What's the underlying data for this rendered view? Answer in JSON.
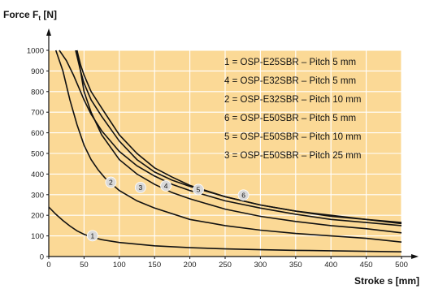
{
  "chart_data": {
    "type": "line",
    "ylabel_main": "Force F",
    "ylabel_sub": "t",
    "ylabel_unit": " [N]",
    "xlabel": "Stroke s [mm]",
    "xlim": [
      0,
      500
    ],
    "ylim": [
      0,
      1000
    ],
    "xticks": [
      0,
      50,
      100,
      150,
      200,
      250,
      300,
      350,
      400,
      450,
      500
    ],
    "yticks": [
      0,
      100,
      200,
      300,
      400,
      500,
      600,
      700,
      800,
      900,
      1000
    ],
    "grid": true,
    "background": "#fbd996",
    "line_color": "#111111",
    "legend_position": "top-right",
    "legend": [
      "1 = OSP-E25SBR – Pitch  5 mm",
      "4 = OSP-E32SBR – Pitch  5 mm",
      "2 = OSP-E32SBR – Pitch  10 mm",
      "6 = OSP-E50SBR – Pitch  5 mm",
      "5 = OSP-E50SBR – Pitch  10 mm",
      "3 = OSP-E50SBR – Pitch  25 mm"
    ],
    "series": [
      {
        "name": "1",
        "label_at": [
          62,
          101
        ],
        "x": [
          0,
          10,
          20,
          30,
          40,
          50,
          60,
          75,
          100,
          150,
          200,
          250,
          300,
          350,
          400,
          450,
          500
        ],
        "y": [
          240,
          205,
          175,
          148,
          125,
          108,
          95,
          82,
          68,
          52,
          43,
          37,
          33,
          30,
          28,
          25,
          23
        ]
      },
      {
        "name": "2",
        "label_at": [
          88,
          360
        ],
        "x": [
          10,
          20,
          30,
          40,
          50,
          60,
          70,
          80,
          100,
          125,
          150,
          200,
          250,
          300,
          350,
          400,
          450,
          500
        ],
        "y": [
          1000,
          900,
          760,
          640,
          540,
          470,
          420,
          380,
          320,
          270,
          235,
          180,
          150,
          128,
          112,
          100,
          88,
          70
        ]
      },
      {
        "name": "3",
        "label_at": [
          130,
          335
        ],
        "x": [
          40,
          50,
          60,
          75,
          100,
          125,
          150,
          175,
          200,
          250,
          300,
          350,
          400,
          450,
          500
        ],
        "y": [
          1000,
          800,
          700,
          590,
          470,
          400,
          350,
          310,
          280,
          230,
          195,
          170,
          150,
          135,
          115
        ]
      },
      {
        "name": "4",
        "label_at": [
          166,
          343
        ],
        "x": [
          15,
          25,
          35,
          45,
          50,
          60,
          75,
          100,
          125,
          150,
          175,
          200,
          250,
          300,
          350,
          400,
          450,
          500
        ],
        "y": [
          1000,
          950,
          880,
          800,
          760,
          690,
          610,
          510,
          440,
          390,
          350,
          320,
          270,
          235,
          205,
          180,
          165,
          150
        ]
      },
      {
        "name": "5",
        "label_at": [
          212,
          325
        ],
        "x": [
          38,
          45,
          50,
          60,
          75,
          100,
          125,
          150,
          175,
          200,
          250,
          300,
          350,
          400,
          450,
          500
        ],
        "y": [
          1000,
          900,
          840,
          760,
          680,
          560,
          470,
          410,
          370,
          340,
          290,
          250,
          220,
          195,
          180,
          165
        ]
      },
      {
        "name": "6",
        "label_at": [
          276,
          298
        ],
        "x": [
          40,
          45,
          50,
          60,
          75,
          100,
          125,
          150,
          175,
          200,
          250,
          300,
          350,
          400,
          450,
          500
        ],
        "y": [
          1000,
          930,
          880,
          800,
          720,
          590,
          500,
          430,
          385,
          345,
          290,
          250,
          220,
          200,
          180,
          160
        ]
      }
    ]
  }
}
